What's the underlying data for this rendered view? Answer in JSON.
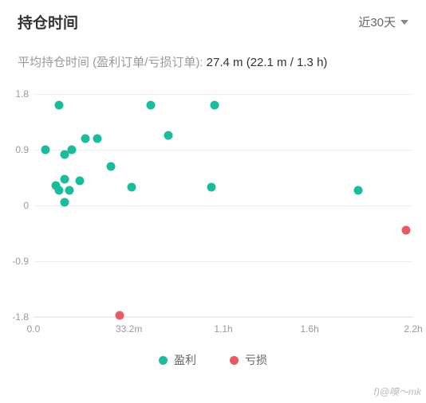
{
  "header": {
    "title": "持仓时间",
    "period_label": "近30天"
  },
  "subtitle": {
    "prefix": "平均持仓时间 (盈利订单/亏损订单): ",
    "value": "27.4 m (22.1 m / 1.3 h)"
  },
  "chart": {
    "type": "scatter",
    "xlim": [
      0.0,
      2.2
    ],
    "ylim": [
      -1.8,
      1.8
    ],
    "y_ticks": [
      1.8,
      0.9,
      0,
      -0.9,
      -1.8
    ],
    "x_ticks": [
      {
        "v": 0.0,
        "label": "0.0"
      },
      {
        "v": 0.553,
        "label": "33.2m"
      },
      {
        "v": 1.1,
        "label": "1.1h"
      },
      {
        "v": 1.6,
        "label": "1.6h"
      },
      {
        "v": 2.2,
        "label": "2.2h"
      }
    ],
    "colors": {
      "profit": "#1abc9c",
      "loss": "#e55b66",
      "grid": "#eeeeee",
      "axis_text": "#999999",
      "background": "#ffffff"
    },
    "marker_size": 11,
    "series": {
      "profit": [
        {
          "x": 0.07,
          "y": 0.9
        },
        {
          "x": 0.15,
          "y": 1.62
        },
        {
          "x": 0.13,
          "y": 0.32
        },
        {
          "x": 0.15,
          "y": 0.25
        },
        {
          "x": 0.18,
          "y": 0.42
        },
        {
          "x": 0.18,
          "y": 0.05
        },
        {
          "x": 0.18,
          "y": 0.82
        },
        {
          "x": 0.21,
          "y": 0.25
        },
        {
          "x": 0.22,
          "y": 0.9
        },
        {
          "x": 0.27,
          "y": 0.4
        },
        {
          "x": 0.3,
          "y": 1.08
        },
        {
          "x": 0.37,
          "y": 1.08
        },
        {
          "x": 0.45,
          "y": 0.63
        },
        {
          "x": 0.57,
          "y": 0.3
        },
        {
          "x": 0.68,
          "y": 1.62
        },
        {
          "x": 0.78,
          "y": 1.13
        },
        {
          "x": 1.03,
          "y": 0.3
        },
        {
          "x": 1.05,
          "y": 1.62
        },
        {
          "x": 1.88,
          "y": 0.25
        }
      ],
      "loss": [
        {
          "x": 0.5,
          "y": -1.77
        },
        {
          "x": 2.16,
          "y": -0.4
        }
      ]
    }
  },
  "legend": {
    "profit": "盈利",
    "loss": "亏损"
  },
  "watermark": "f)@嗅～mk"
}
